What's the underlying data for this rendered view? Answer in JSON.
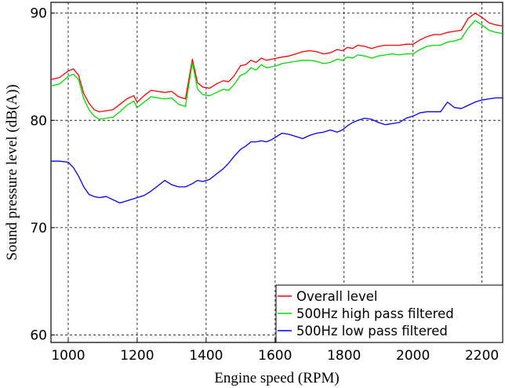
{
  "chart_data": {
    "type": "line",
    "xlabel": "Engine speed (RPM)",
    "ylabel": "Sound pressure level (dB(A))",
    "xlim": [
      950,
      2260
    ],
    "ylim": [
      59.3,
      91.0
    ],
    "x_ticks": [
      1000,
      1200,
      1400,
      1600,
      1800,
      2000,
      2200
    ],
    "y_ticks": [
      60,
      70,
      80,
      90
    ],
    "x_tick_labels": [
      "1000",
      "1200",
      "1400",
      "1600",
      "1800",
      "2000",
      "2200"
    ],
    "y_tick_labels": [
      "60",
      "70",
      "80",
      "90"
    ],
    "grid": true,
    "legend_position": "lower-right",
    "series": [
      {
        "name": "Overall level",
        "color": "#ff0000",
        "x": [
          950,
          975,
          1000,
          1015,
          1030,
          1045,
          1060,
          1075,
          1090,
          1110,
          1130,
          1150,
          1170,
          1190,
          1200,
          1220,
          1240,
          1260,
          1280,
          1300,
          1320,
          1340,
          1360,
          1375,
          1390,
          1410,
          1430,
          1450,
          1465,
          1480,
          1500,
          1515,
          1530,
          1545,
          1560,
          1575,
          1590,
          1605,
          1620,
          1640,
          1660,
          1680,
          1700,
          1720,
          1740,
          1760,
          1780,
          1795,
          1810,
          1825,
          1840,
          1860,
          1880,
          1900,
          1920,
          1940,
          1960,
          1980,
          2000,
          2020,
          2040,
          2060,
          2080,
          2100,
          2120,
          2140,
          2160,
          2180,
          2200,
          2220,
          2240,
          2260
        ],
        "y": [
          83.8,
          84.0,
          84.6,
          84.8,
          84.2,
          82.5,
          81.6,
          81.0,
          80.8,
          80.9,
          81.0,
          81.5,
          82.0,
          82.3,
          81.7,
          82.3,
          82.8,
          82.7,
          82.6,
          82.7,
          82.2,
          82.0,
          85.7,
          83.5,
          83.1,
          83.0,
          83.4,
          83.7,
          83.6,
          84.1,
          85.1,
          85.2,
          85.6,
          85.4,
          85.8,
          85.6,
          85.7,
          85.8,
          85.9,
          86.0,
          86.2,
          86.4,
          86.5,
          86.4,
          86.2,
          86.3,
          86.6,
          86.5,
          86.8,
          86.7,
          87.0,
          86.9,
          86.7,
          86.9,
          87.0,
          87.0,
          87.0,
          87.1,
          87.1,
          87.5,
          87.8,
          88.0,
          88.0,
          88.2,
          88.3,
          88.4,
          89.5,
          90.0,
          89.6,
          89.1,
          88.9,
          88.8
        ]
      },
      {
        "name": "500Hz high pass filtered",
        "color": "#00dd00",
        "x": [
          950,
          975,
          1000,
          1015,
          1030,
          1045,
          1060,
          1075,
          1090,
          1110,
          1130,
          1150,
          1170,
          1190,
          1200,
          1220,
          1240,
          1260,
          1280,
          1300,
          1320,
          1340,
          1360,
          1375,
          1390,
          1410,
          1430,
          1450,
          1465,
          1480,
          1500,
          1515,
          1530,
          1545,
          1560,
          1575,
          1590,
          1605,
          1620,
          1640,
          1660,
          1680,
          1700,
          1720,
          1740,
          1760,
          1780,
          1795,
          1810,
          1825,
          1840,
          1860,
          1880,
          1900,
          1920,
          1940,
          1960,
          1980,
          2000,
          2020,
          2040,
          2060,
          2080,
          2100,
          2120,
          2140,
          2160,
          2180,
          2200,
          2220,
          2240,
          2260
        ],
        "y": [
          83.2,
          83.4,
          84.1,
          84.3,
          83.8,
          82.0,
          81.0,
          80.4,
          80.1,
          80.2,
          80.3,
          80.8,
          81.4,
          81.8,
          81.2,
          81.7,
          82.2,
          82.1,
          82.0,
          82.1,
          81.5,
          81.3,
          85.4,
          82.9,
          82.4,
          82.3,
          82.6,
          82.9,
          82.8,
          83.3,
          84.2,
          84.4,
          84.9,
          84.7,
          85.2,
          84.9,
          85.0,
          85.1,
          85.3,
          85.4,
          85.5,
          85.6,
          85.6,
          85.5,
          85.3,
          85.4,
          85.7,
          85.6,
          85.9,
          85.8,
          86.1,
          86.0,
          85.8,
          86.0,
          86.1,
          86.2,
          86.1,
          86.2,
          86.2,
          86.6,
          86.9,
          87.0,
          87.0,
          87.3,
          87.4,
          87.6,
          88.6,
          89.3,
          88.9,
          88.4,
          88.2,
          88.1
        ]
      },
      {
        "name": "500Hz low pass filtered",
        "color": "#0000ff",
        "x": [
          950,
          975,
          1000,
          1015,
          1030,
          1045,
          1060,
          1075,
          1090,
          1110,
          1130,
          1150,
          1170,
          1190,
          1200,
          1220,
          1240,
          1260,
          1280,
          1300,
          1320,
          1340,
          1360,
          1375,
          1390,
          1410,
          1430,
          1450,
          1465,
          1480,
          1500,
          1515,
          1530,
          1545,
          1560,
          1575,
          1590,
          1605,
          1620,
          1640,
          1660,
          1680,
          1700,
          1720,
          1740,
          1760,
          1780,
          1795,
          1810,
          1825,
          1840,
          1860,
          1880,
          1900,
          1920,
          1940,
          1960,
          1980,
          2000,
          2020,
          2040,
          2060,
          2080,
          2100,
          2120,
          2140,
          2160,
          2180,
          2200,
          2220,
          2240,
          2260
        ],
        "y": [
          76.2,
          76.2,
          76.1,
          75.6,
          74.8,
          73.8,
          73.1,
          72.9,
          72.8,
          72.9,
          72.6,
          72.3,
          72.5,
          72.7,
          72.8,
          73.0,
          73.4,
          73.9,
          74.4,
          74.0,
          73.8,
          73.8,
          74.1,
          74.4,
          74.3,
          74.5,
          75.0,
          75.5,
          76.0,
          76.6,
          77.3,
          77.6,
          78.0,
          78.0,
          78.1,
          78.0,
          78.2,
          78.5,
          78.8,
          78.7,
          78.5,
          78.3,
          78.6,
          78.8,
          78.9,
          79.1,
          78.9,
          79.1,
          79.5,
          79.8,
          80.0,
          80.2,
          80.1,
          79.8,
          79.6,
          79.7,
          79.8,
          80.2,
          80.4,
          80.7,
          80.8,
          80.8,
          80.8,
          81.7,
          81.2,
          81.1,
          81.4,
          81.7,
          81.9,
          82.0,
          82.1,
          82.1
        ]
      }
    ]
  }
}
